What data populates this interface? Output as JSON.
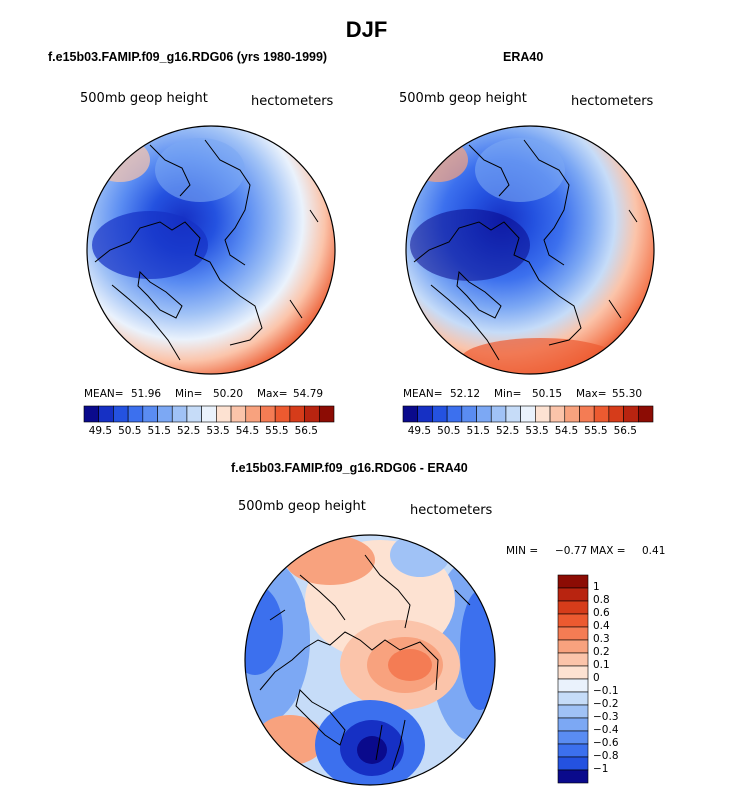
{
  "figure": {
    "title": "DJF"
  },
  "map_panels": [
    {
      "title": "f.e15b03.FAMIP.f09_g16.RDG06 (yrs 1980-1999)",
      "variable": "500mb geop height",
      "units": "hectometers",
      "stats": {
        "mean_label": "MEAN=",
        "mean": "51.96",
        "min_label": "Min=",
        "min": "50.20",
        "max_label": "Max=",
        "max": "54.79"
      }
    },
    {
      "title": "ERA40",
      "variable": "500mb geop height",
      "units": "hectometers",
      "stats": {
        "mean_label": "MEAN=",
        "mean": "52.12",
        "min_label": "Min=",
        "min": "50.15",
        "max_label": "Max=",
        "max": "55.30"
      }
    },
    {
      "title": "f.e15b03.FAMIP.f09_g16.RDG06 - ERA40",
      "variable": "500mb geop height",
      "units": "hectometers",
      "stats": {
        "min_label": "MIN =",
        "min": "−0.77",
        "max_label": "MAX =",
        "max": "0.41"
      }
    }
  ],
  "colorbar_absolute": {
    "labels": [
      "49.5",
      "50.5",
      "51.5",
      "52.5",
      "53.5",
      "54.5",
      "55.5",
      "56.5"
    ],
    "colors": [
      "#0a0a8c",
      "#1630c4",
      "#2452e0",
      "#3c70ee",
      "#5a8cf2",
      "#7ca8f4",
      "#a0c2f6",
      "#c6dcf8",
      "#eaf2fc",
      "#fde2d2",
      "#fbc4aa",
      "#f8a27e",
      "#f47c54",
      "#ec5a30",
      "#d63c1a",
      "#b82410",
      "#8c0c04"
    ]
  },
  "colorbar_diff": {
    "labels": [
      "1",
      "0.8",
      "0.6",
      "0.4",
      "0.3",
      "0.2",
      "0.1",
      "0",
      "−0.1",
      "−0.2",
      "−0.3",
      "−0.4",
      "−0.6",
      "−0.8",
      "−1"
    ],
    "colors": [
      "#8c0c04",
      "#b82410",
      "#d63c1a",
      "#ec5a30",
      "#f47c54",
      "#f8a27e",
      "#fbc4aa",
      "#fde2d2",
      "#eaf2fc",
      "#c6dcf8",
      "#a0c2f6",
      "#7ca8f4",
      "#5a8cf2",
      "#3c70ee",
      "#2452e0",
      "#0a0a8c"
    ]
  },
  "colors": {
    "blue_dark": "#0a0a8c",
    "blue_mid": "#3c70ee",
    "blue_light": "#c6dcf8",
    "red_light": "#fde2d2",
    "red_mid": "#f47c54",
    "red_dark": "#8c0c04"
  }
}
